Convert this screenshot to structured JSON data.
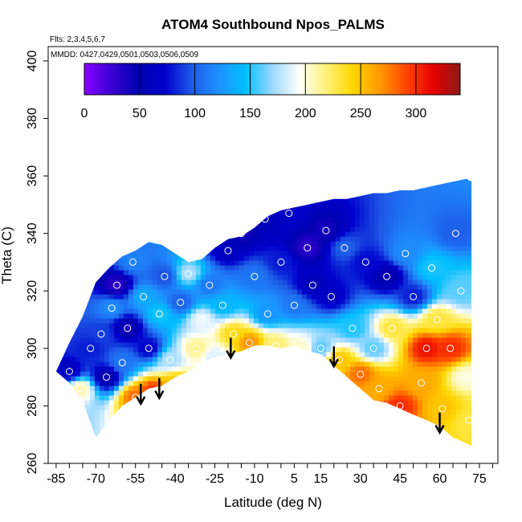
{
  "chart_data": {
    "type": "heatmap",
    "title": "ATOM4 Southbound Npos_PALMS",
    "flights_label": "Flts: 2,3,4,5,6,7",
    "dates_label": "MMDD: 0427,0429,0501,0503,0506,0509",
    "xlabel": "Latitude (deg N)",
    "ylabel": "Theta (C)",
    "xlim": [
      -88,
      82
    ],
    "ylim": [
      260,
      405
    ],
    "x_ticks": [
      -85,
      -70,
      -55,
      -40,
      -25,
      -10,
      5,
      15,
      30,
      45,
      60,
      75
    ],
    "x_tick_labels": [
      "-85",
      "-70",
      "-55",
      "-40",
      "-25",
      "-10",
      "5",
      "15",
      "30",
      "45",
      "60",
      "75"
    ],
    "y_ticks": [
      260,
      280,
      300,
      320,
      340,
      360,
      380,
      400
    ],
    "y_tick_labels": [
      "260",
      "280",
      "300",
      "320",
      "340",
      "360",
      "380",
      "400"
    ],
    "colorbar": {
      "range": [
        0,
        340
      ],
      "ticks": [
        0,
        50,
        100,
        150,
        200,
        250,
        300
      ],
      "tick_labels": [
        "0",
        "50",
        "100",
        "150",
        "200",
        "250",
        "300"
      ],
      "colors": [
        "#8B00FF",
        "#3A00D4",
        "#0000B0",
        "#0000CD",
        "#1E5AE6",
        "#1E90FF",
        "#00BFFF",
        "#9BD8FF",
        "#FFFFFF",
        "#FFF27A",
        "#FFD700",
        "#FF9900",
        "#FF4500",
        "#E60000",
        "#8B1A1A"
      ]
    },
    "envelope": {
      "latitude": [
        -85,
        -80,
        -75,
        -70,
        -65,
        -60,
        -55,
        -50,
        -45,
        -40,
        -35,
        -30,
        -25,
        -20,
        -15,
        -10,
        -5,
        0,
        5,
        10,
        15,
        20,
        25,
        30,
        35,
        40,
        45,
        50,
        55,
        60,
        65,
        70,
        72
      ],
      "theta_top": [
        292,
        302,
        311,
        323,
        328,
        332,
        334,
        337,
        336,
        333,
        330,
        331,
        335,
        338,
        339,
        342,
        346,
        348,
        349,
        350,
        351,
        352,
        352,
        353,
        354,
        354,
        355,
        355,
        356,
        357,
        358,
        359,
        358
      ],
      "theta_bottom": [
        292,
        288,
        282,
        269,
        275,
        280,
        283,
        286,
        287,
        290,
        292,
        295,
        297,
        298,
        299,
        301,
        301,
        300,
        301,
        299,
        298,
        294,
        290,
        286,
        282,
        281,
        279,
        277,
        275,
        273,
        269,
        267,
        266
      ]
    },
    "samples": [
      {
        "latitude": -80,
        "theta": 292,
        "value": 60
      },
      {
        "latitude": -76,
        "theta": 286,
        "value": 210
      },
      {
        "latitude": -72,
        "theta": 300,
        "value": 80
      },
      {
        "latitude": -68,
        "theta": 305,
        "value": 90
      },
      {
        "latitude": -66,
        "theta": 290,
        "value": 45
      },
      {
        "latitude": -64,
        "theta": 314,
        "value": 120
      },
      {
        "latitude": -62,
        "theta": 322,
        "value": 30
      },
      {
        "latitude": -60,
        "theta": 295,
        "value": 110
      },
      {
        "latitude": -58,
        "theta": 307,
        "value": 40
      },
      {
        "latitude": -56,
        "theta": 330,
        "value": 115
      },
      {
        "latitude": -55,
        "theta": 283,
        "value": 280
      },
      {
        "latitude": -52,
        "theta": 318,
        "value": 135
      },
      {
        "latitude": -50,
        "theta": 300,
        "value": 70
      },
      {
        "latitude": -48,
        "theta": 285,
        "value": 300
      },
      {
        "latitude": -46,
        "theta": 312,
        "value": 150
      },
      {
        "latitude": -44,
        "theta": 325,
        "value": 95
      },
      {
        "latitude": -42,
        "theta": 296,
        "value": 175
      },
      {
        "latitude": -40,
        "theta": 288,
        "value": 250
      },
      {
        "latitude": -38,
        "theta": 316,
        "value": 100
      },
      {
        "latitude": -35,
        "theta": 326,
        "value": 175
      },
      {
        "latitude": -32,
        "theta": 300,
        "value": 215
      },
      {
        "latitude": -30,
        "theta": 310,
        "value": 190
      },
      {
        "latitude": -27,
        "theta": 322,
        "value": 110
      },
      {
        "latitude": -25,
        "theta": 297,
        "value": 185
      },
      {
        "latitude": -22,
        "theta": 315,
        "value": 140
      },
      {
        "latitude": -20,
        "theta": 334,
        "value": 60
      },
      {
        "latitude": -18,
        "theta": 305,
        "value": 240
      },
      {
        "latitude": -15,
        "theta": 340,
        "value": 40
      },
      {
        "latitude": -12,
        "theta": 302,
        "value": 270
      },
      {
        "latitude": -10,
        "theta": 325,
        "value": 110
      },
      {
        "latitude": -6,
        "theta": 345,
        "value": 55
      },
      {
        "latitude": -5,
        "theta": 312,
        "value": 125
      },
      {
        "latitude": -2,
        "theta": 301,
        "value": 220
      },
      {
        "latitude": 0,
        "theta": 330,
        "value": 80
      },
      {
        "latitude": 3,
        "theta": 347,
        "value": 70
      },
      {
        "latitude": 5,
        "theta": 315,
        "value": 110
      },
      {
        "latitude": 8,
        "theta": 300,
        "value": 205
      },
      {
        "latitude": 10,
        "theta": 335,
        "value": 30
      },
      {
        "latitude": 12,
        "theta": 322,
        "value": 55
      },
      {
        "latitude": 15,
        "theta": 300,
        "value": 160
      },
      {
        "latitude": 17,
        "theta": 341,
        "value": 40
      },
      {
        "latitude": 19,
        "theta": 318,
        "value": 65
      },
      {
        "latitude": 22,
        "theta": 296,
        "value": 250
      },
      {
        "latitude": 24,
        "theta": 335,
        "value": 100
      },
      {
        "latitude": 27,
        "theta": 307,
        "value": 150
      },
      {
        "latitude": 30,
        "theta": 291,
        "value": 280
      },
      {
        "latitude": 32,
        "theta": 330,
        "value": 75
      },
      {
        "latitude": 35,
        "theta": 300,
        "value": 160
      },
      {
        "latitude": 37,
        "theta": 286,
        "value": 260
      },
      {
        "latitude": 40,
        "theta": 325,
        "value": 45
      },
      {
        "latitude": 42,
        "theta": 307,
        "value": 230
      },
      {
        "latitude": 45,
        "theta": 280,
        "value": 300
      },
      {
        "latitude": 47,
        "theta": 333,
        "value": 120
      },
      {
        "latitude": 50,
        "theta": 318,
        "value": 80
      },
      {
        "latitude": 53,
        "theta": 288,
        "value": 260
      },
      {
        "latitude": 55,
        "theta": 300,
        "value": 310
      },
      {
        "latitude": 57,
        "theta": 328,
        "value": 150
      },
      {
        "latitude": 59,
        "theta": 310,
        "value": 230
      },
      {
        "latitude": 61,
        "theta": 279,
        "value": 250
      },
      {
        "latitude": 64,
        "theta": 300,
        "value": 300
      },
      {
        "latitude": 66,
        "theta": 340,
        "value": 100
      },
      {
        "latitude": 68,
        "theta": 320,
        "value": 160
      },
      {
        "latitude": 70,
        "theta": 290,
        "value": 200
      },
      {
        "latitude": 71,
        "theta": 275,
        "value": 230
      }
    ],
    "arrows": [
      {
        "latitude": -53,
        "theta": 281
      },
      {
        "latitude": -46,
        "theta": 283
      },
      {
        "latitude": -19,
        "theta": 297
      },
      {
        "latitude": 20,
        "theta": 294
      },
      {
        "latitude": 60,
        "theta": 271
      }
    ]
  }
}
